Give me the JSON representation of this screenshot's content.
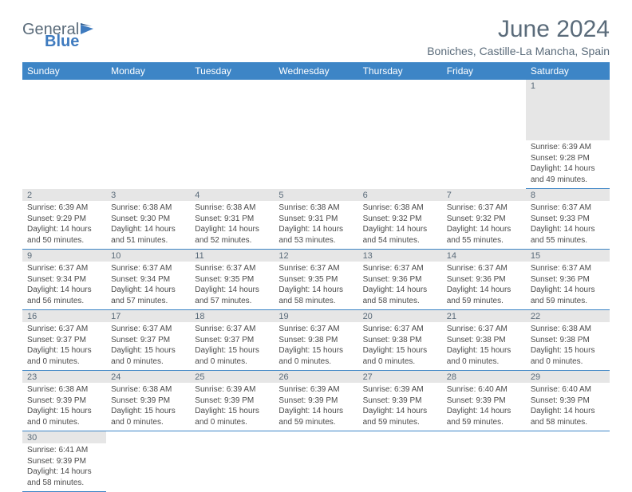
{
  "logo": {
    "word1": "General",
    "word2": "Blue"
  },
  "title": "June 2024",
  "subtitle": "Boniches, Castille-La Mancha, Spain",
  "colors": {
    "header_bg": "#3d85c6",
    "header_text": "#ffffff",
    "daynum_bg": "#e6e6e6",
    "text_gray": "#5a6b7a",
    "cell_border": "#3d85c6"
  },
  "weekdays": [
    "Sunday",
    "Monday",
    "Tuesday",
    "Wednesday",
    "Thursday",
    "Friday",
    "Saturday"
  ],
  "weeks": [
    [
      null,
      null,
      null,
      null,
      null,
      null,
      {
        "n": "1",
        "sr": "6:39 AM",
        "ss": "9:28 PM",
        "dl": "14 hours and 49 minutes."
      }
    ],
    [
      {
        "n": "2",
        "sr": "6:39 AM",
        "ss": "9:29 PM",
        "dl": "14 hours and 50 minutes."
      },
      {
        "n": "3",
        "sr": "6:38 AM",
        "ss": "9:30 PM",
        "dl": "14 hours and 51 minutes."
      },
      {
        "n": "4",
        "sr": "6:38 AM",
        "ss": "9:31 PM",
        "dl": "14 hours and 52 minutes."
      },
      {
        "n": "5",
        "sr": "6:38 AM",
        "ss": "9:31 PM",
        "dl": "14 hours and 53 minutes."
      },
      {
        "n": "6",
        "sr": "6:38 AM",
        "ss": "9:32 PM",
        "dl": "14 hours and 54 minutes."
      },
      {
        "n": "7",
        "sr": "6:37 AM",
        "ss": "9:32 PM",
        "dl": "14 hours and 55 minutes."
      },
      {
        "n": "8",
        "sr": "6:37 AM",
        "ss": "9:33 PM",
        "dl": "14 hours and 55 minutes."
      }
    ],
    [
      {
        "n": "9",
        "sr": "6:37 AM",
        "ss": "9:34 PM",
        "dl": "14 hours and 56 minutes."
      },
      {
        "n": "10",
        "sr": "6:37 AM",
        "ss": "9:34 PM",
        "dl": "14 hours and 57 minutes."
      },
      {
        "n": "11",
        "sr": "6:37 AM",
        "ss": "9:35 PM",
        "dl": "14 hours and 57 minutes."
      },
      {
        "n": "12",
        "sr": "6:37 AM",
        "ss": "9:35 PM",
        "dl": "14 hours and 58 minutes."
      },
      {
        "n": "13",
        "sr": "6:37 AM",
        "ss": "9:36 PM",
        "dl": "14 hours and 58 minutes."
      },
      {
        "n": "14",
        "sr": "6:37 AM",
        "ss": "9:36 PM",
        "dl": "14 hours and 59 minutes."
      },
      {
        "n": "15",
        "sr": "6:37 AM",
        "ss": "9:36 PM",
        "dl": "14 hours and 59 minutes."
      }
    ],
    [
      {
        "n": "16",
        "sr": "6:37 AM",
        "ss": "9:37 PM",
        "dl": "15 hours and 0 minutes."
      },
      {
        "n": "17",
        "sr": "6:37 AM",
        "ss": "9:37 PM",
        "dl": "15 hours and 0 minutes."
      },
      {
        "n": "18",
        "sr": "6:37 AM",
        "ss": "9:37 PM",
        "dl": "15 hours and 0 minutes."
      },
      {
        "n": "19",
        "sr": "6:37 AM",
        "ss": "9:38 PM",
        "dl": "15 hours and 0 minutes."
      },
      {
        "n": "20",
        "sr": "6:37 AM",
        "ss": "9:38 PM",
        "dl": "15 hours and 0 minutes."
      },
      {
        "n": "21",
        "sr": "6:37 AM",
        "ss": "9:38 PM",
        "dl": "15 hours and 0 minutes."
      },
      {
        "n": "22",
        "sr": "6:38 AM",
        "ss": "9:38 PM",
        "dl": "15 hours and 0 minutes."
      }
    ],
    [
      {
        "n": "23",
        "sr": "6:38 AM",
        "ss": "9:39 PM",
        "dl": "15 hours and 0 minutes."
      },
      {
        "n": "24",
        "sr": "6:38 AM",
        "ss": "9:39 PM",
        "dl": "15 hours and 0 minutes."
      },
      {
        "n": "25",
        "sr": "6:39 AM",
        "ss": "9:39 PM",
        "dl": "15 hours and 0 minutes."
      },
      {
        "n": "26",
        "sr": "6:39 AM",
        "ss": "9:39 PM",
        "dl": "14 hours and 59 minutes."
      },
      {
        "n": "27",
        "sr": "6:39 AM",
        "ss": "9:39 PM",
        "dl": "14 hours and 59 minutes."
      },
      {
        "n": "28",
        "sr": "6:40 AM",
        "ss": "9:39 PM",
        "dl": "14 hours and 59 minutes."
      },
      {
        "n": "29",
        "sr": "6:40 AM",
        "ss": "9:39 PM",
        "dl": "14 hours and 58 minutes."
      }
    ],
    [
      {
        "n": "30",
        "sr": "6:41 AM",
        "ss": "9:39 PM",
        "dl": "14 hours and 58 minutes."
      },
      null,
      null,
      null,
      null,
      null,
      null
    ]
  ],
  "labels": {
    "sunrise": "Sunrise:",
    "sunset": "Sunset:",
    "daylight": "Daylight:"
  }
}
